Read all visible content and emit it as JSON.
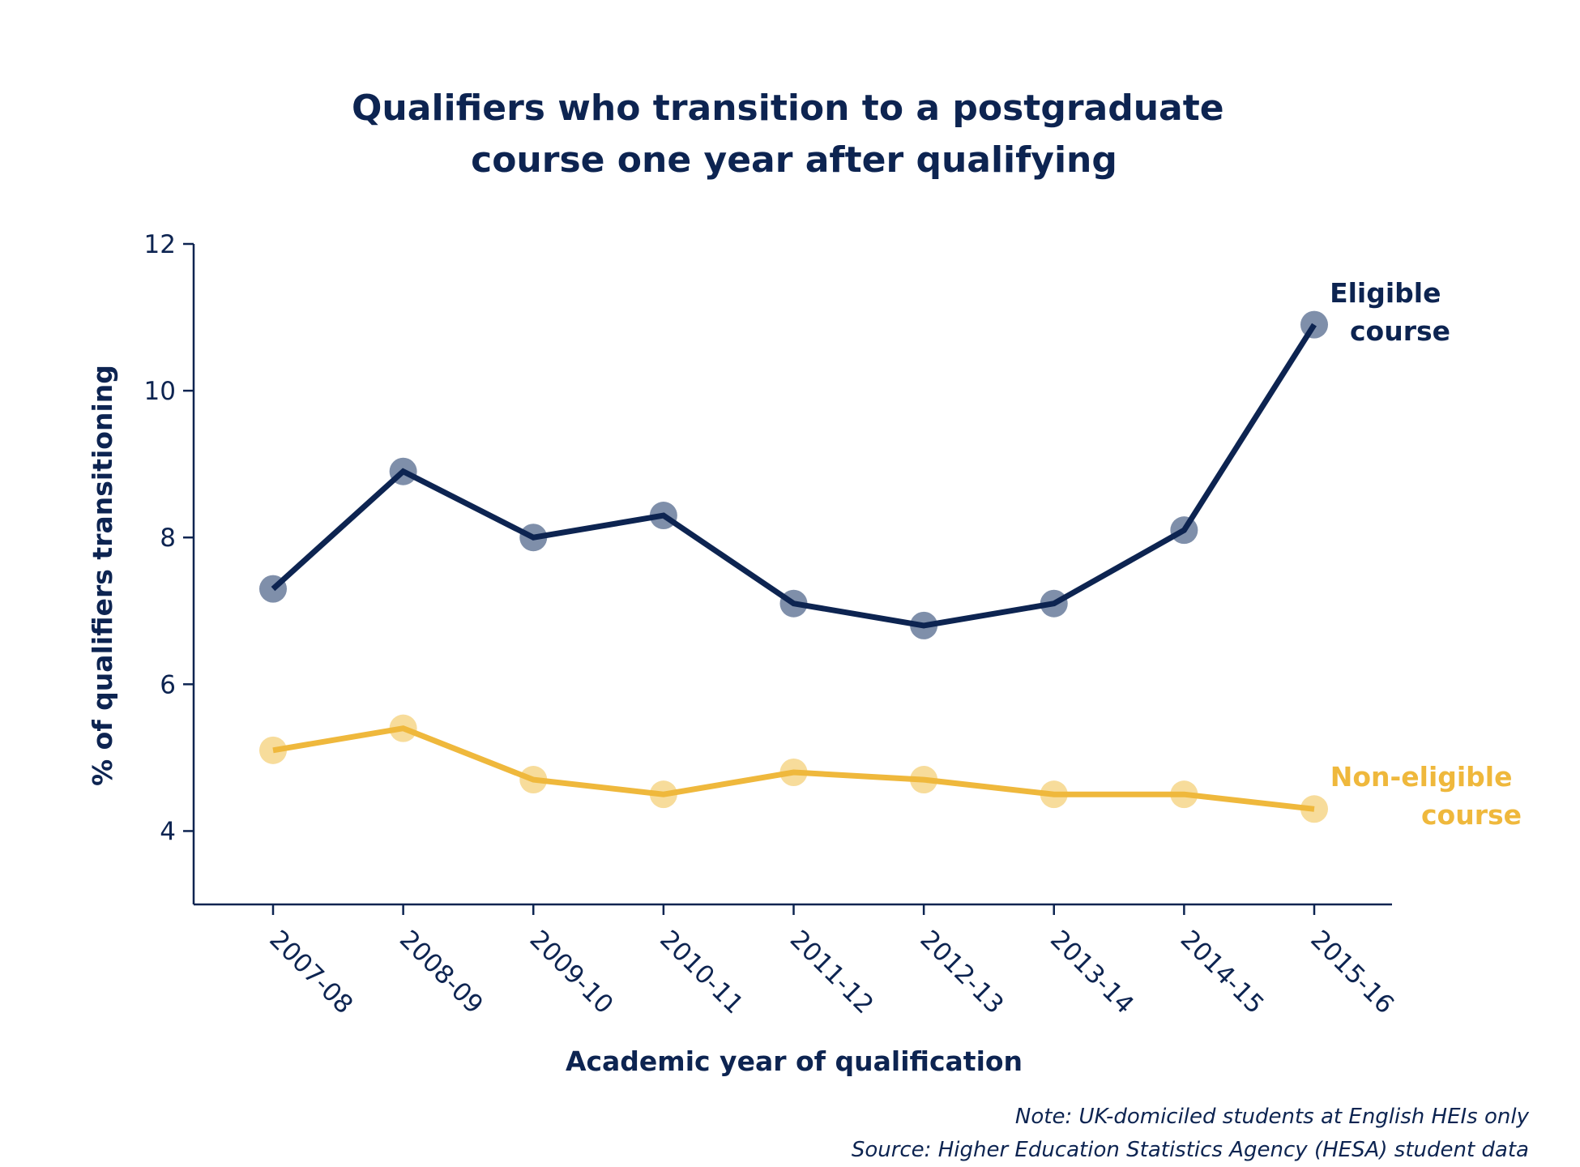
{
  "chart_data": {
    "type": "line",
    "title": [
      "Qualifiers who transition to a postgraduate",
      "course one year after qualifying"
    ],
    "xlabel": "Academic year of qualification",
    "ylabel": "% of qualifiers transitioning",
    "categories": [
      "2007-08",
      "2008-09",
      "2009-10",
      "2010-11",
      "2011-12",
      "2012-13",
      "2013-14",
      "2014-15",
      "2015-16"
    ],
    "y_ticks": [
      4,
      6,
      8,
      10,
      12
    ],
    "ylim": [
      3,
      12
    ],
    "grid": false,
    "series": [
      {
        "name": [
          "Eligible",
          "course"
        ],
        "values": [
          7.3,
          8.9,
          8.0,
          8.3,
          7.1,
          6.8,
          7.1,
          8.1,
          10.9
        ],
        "color": "#0d2451",
        "marker_color": "#7f8faa"
      },
      {
        "name": [
          "Non-eligible",
          "course"
        ],
        "values": [
          5.1,
          5.4,
          4.7,
          4.5,
          4.8,
          4.7,
          4.5,
          4.5,
          4.3
        ],
        "color": "#efb83c",
        "marker_color": "#f7dc9b"
      }
    ],
    "notes": [
      "Note: UK-domiciled students at English HEIs only",
      "Source: Higher Education Statistics Agency (HESA) student data"
    ],
    "colors": {
      "text": "#0d2451",
      "axis": "#0d2451"
    }
  }
}
